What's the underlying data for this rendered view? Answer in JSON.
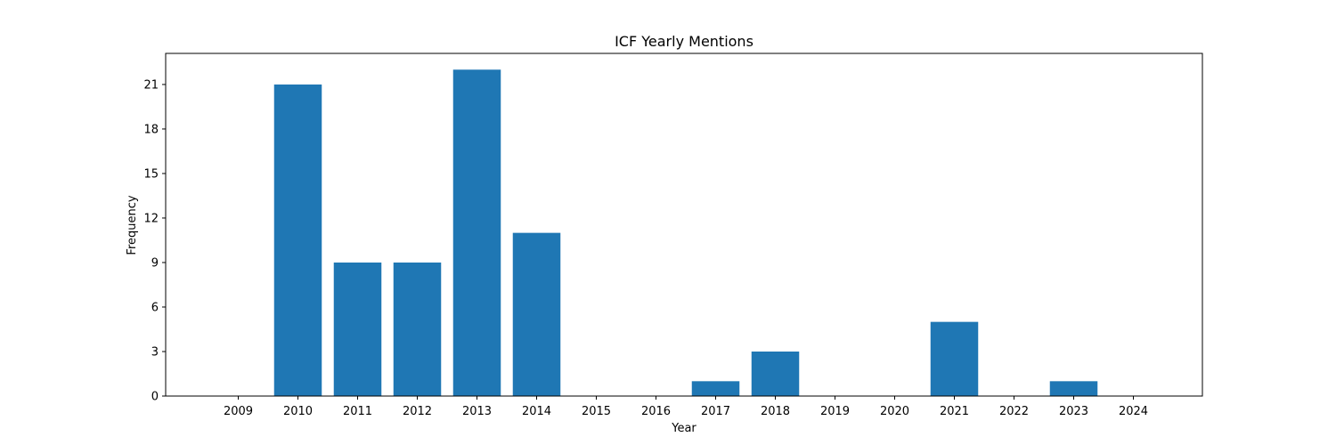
{
  "chart_data": {
    "type": "bar",
    "title": "ICF Yearly Mentions",
    "xlabel": "Year",
    "ylabel": "Frequency",
    "categories": [
      "2009",
      "2010",
      "2011",
      "2012",
      "2013",
      "2014",
      "2015",
      "2016",
      "2017",
      "2018",
      "2019",
      "2020",
      "2021",
      "2022",
      "2023",
      "2024"
    ],
    "values": [
      0,
      21,
      9,
      9,
      22,
      11,
      0,
      0,
      1,
      3,
      0,
      0,
      5,
      0,
      1,
      0
    ],
    "ylim": [
      0,
      23
    ],
    "yticks": [
      0,
      3,
      6,
      9,
      12,
      15,
      18,
      21
    ],
    "bar_color": "#1f77b4",
    "grid": false,
    "legend": "none"
  }
}
